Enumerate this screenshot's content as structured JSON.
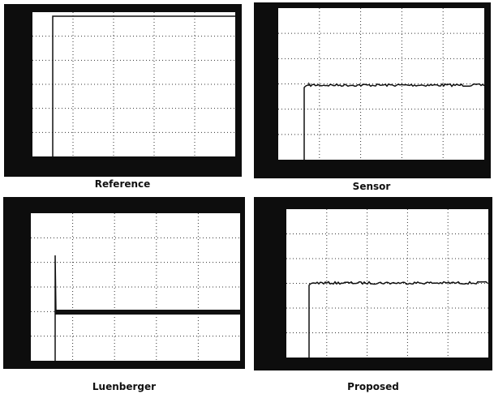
{
  "panels": [
    {
      "label": "Reference"
    },
    {
      "label": "Sensor"
    },
    {
      "label": "Luenberger"
    },
    {
      "label": "Proposed"
    }
  ]
}
